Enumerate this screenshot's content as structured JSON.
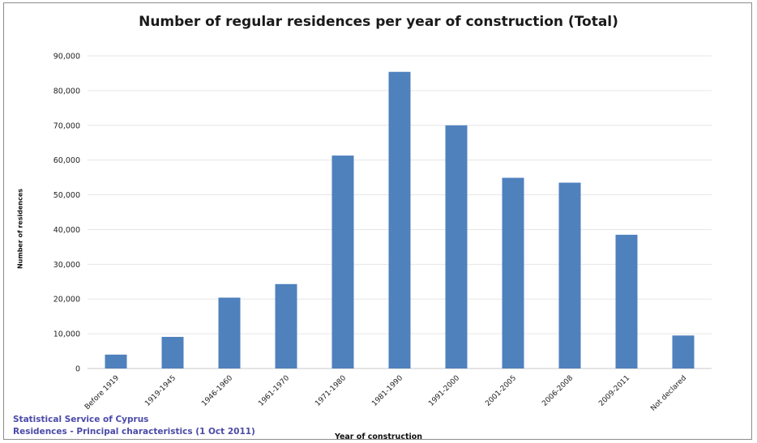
{
  "chart_data": {
    "type": "bar",
    "title": "Number of regular residences per year of construction (Total)",
    "xlabel": "Year of construction",
    "ylabel": "Number of residences",
    "categories": [
      "Before 1919",
      "1919-1945",
      "1946-1960",
      "1961-1970",
      "1971-1980",
      "1981-1990",
      "1991-2000",
      "2001-2005",
      "2006-2008",
      "2009-2011",
      "Not declared"
    ],
    "values": [
      4000,
      9100,
      20400,
      24300,
      61300,
      85400,
      70000,
      54900,
      53500,
      38500,
      9500
    ],
    "ylim": [
      0,
      90000
    ],
    "yticks": [
      "0",
      "10,000",
      "20,000",
      "30,000",
      "40,000",
      "50,000",
      "60,000",
      "70,000",
      "80,000",
      "90,000"
    ],
    "grid": true,
    "legend": "none",
    "bar_color": "#4f81bd",
    "grid_color": "#e6e6e6"
  },
  "source": {
    "line1": "Statistical Service of Cyprus",
    "line2": "Residences - Principal characteristics (1 Oct 2011)"
  }
}
